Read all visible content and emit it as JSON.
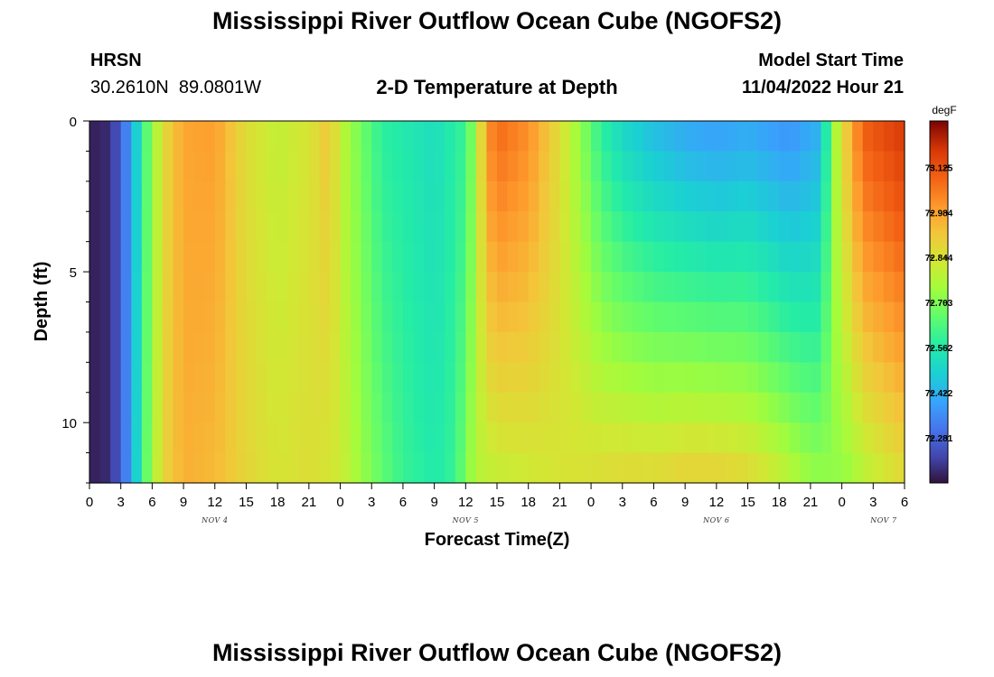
{
  "header": {
    "title": "Mississippi River Outflow Ocean Cube (NGOFS2)",
    "station_name": "HRSN",
    "station_coords": "30.2610N  89.0801W",
    "model_start_label": "Model Start Time",
    "model_start_value": "11/04/2022 Hour 21"
  },
  "footer": {
    "title": "Mississippi River Outflow Ocean Cube (NGOFS2)"
  },
  "chart_data": {
    "type": "heatmap",
    "title": "2-D Temperature at Depth",
    "xlabel": "Forecast Time(Z)",
    "ylabel": "Depth (ft)",
    "x_tick_labels": [
      "0",
      "3",
      "6",
      "9",
      "12",
      "15",
      "18",
      "21",
      "0",
      "3",
      "6",
      "9",
      "12",
      "15",
      "18",
      "21",
      "0",
      "3",
      "6",
      "9",
      "12",
      "15",
      "18",
      "21",
      "0",
      "3",
      "6"
    ],
    "x_range_hours": [
      0,
      78
    ],
    "day_labels": [
      {
        "label": "NOV 4",
        "hour": 12
      },
      {
        "label": "NOV 5",
        "hour": 36
      },
      {
        "label": "NOV 6",
        "hour": 60
      },
      {
        "label": "NOV 7",
        "hour": 76
      }
    ],
    "y_range_ft": [
      0,
      12
    ],
    "y_ticks": [
      0,
      5,
      10
    ],
    "y_inverted": true,
    "colorbar": {
      "unit": "degF",
      "range": [
        72.14,
        73.27
      ],
      "tick_values": [
        73.125,
        72.984,
        72.844,
        72.703,
        72.562,
        72.422,
        72.281
      ],
      "tick_labels": [
        "73.125",
        "72.984",
        "72.844",
        "72.703",
        "72.562",
        "72.422",
        "72.281"
      ]
    },
    "temperature_field": {
      "description_units": "degF",
      "time_step_hours": 1,
      "depth_levels_ft": [
        0.5,
        1.5,
        2.5,
        3.5,
        4.5,
        5.5,
        6.5,
        7.5,
        8.5,
        9.5,
        10.5,
        11.5
      ],
      "surface_anchors": [
        [
          0,
          72.16
        ],
        [
          2,
          72.18
        ],
        [
          4,
          72.38
        ],
        [
          5,
          72.58
        ],
        [
          6,
          72.72
        ],
        [
          7,
          72.86
        ],
        [
          9,
          72.98
        ],
        [
          12,
          72.99
        ],
        [
          15,
          72.86
        ],
        [
          18,
          72.8
        ],
        [
          21,
          72.84
        ],
        [
          23,
          72.92
        ],
        [
          24,
          72.8
        ],
        [
          26,
          72.68
        ],
        [
          28,
          72.58
        ],
        [
          30,
          72.56
        ],
        [
          33,
          72.52
        ],
        [
          36,
          72.6
        ],
        [
          37,
          72.76
        ],
        [
          38,
          73.0
        ],
        [
          39,
          73.08
        ],
        [
          42,
          73.02
        ],
        [
          45,
          72.86
        ],
        [
          47,
          72.72
        ],
        [
          49,
          72.58
        ],
        [
          51,
          72.5
        ],
        [
          54,
          72.44
        ],
        [
          57,
          72.4
        ],
        [
          60,
          72.38
        ],
        [
          63,
          72.4
        ],
        [
          67,
          72.36
        ],
        [
          70,
          72.42
        ],
        [
          71,
          72.7
        ],
        [
          72,
          72.86
        ],
        [
          74,
          73.1
        ],
        [
          78,
          73.18
        ]
      ],
      "bottom_anchors": [
        [
          0,
          72.16
        ],
        [
          2,
          72.18
        ],
        [
          4,
          72.38
        ],
        [
          5,
          72.6
        ],
        [
          6,
          72.74
        ],
        [
          7,
          72.88
        ],
        [
          9,
          72.96
        ],
        [
          12,
          72.94
        ],
        [
          15,
          72.88
        ],
        [
          18,
          72.84
        ],
        [
          21,
          72.86
        ],
        [
          24,
          72.82
        ],
        [
          26,
          72.74
        ],
        [
          28,
          72.66
        ],
        [
          30,
          72.6
        ],
        [
          33,
          72.56
        ],
        [
          35,
          72.6
        ],
        [
          36,
          72.7
        ],
        [
          37,
          72.78
        ],
        [
          39,
          72.8
        ],
        [
          42,
          72.82
        ],
        [
          45,
          72.84
        ],
        [
          48,
          72.86
        ],
        [
          51,
          72.88
        ],
        [
          54,
          72.88
        ],
        [
          57,
          72.9
        ],
        [
          60,
          72.9
        ],
        [
          63,
          72.88
        ],
        [
          66,
          72.82
        ],
        [
          69,
          72.74
        ],
        [
          72,
          72.72
        ],
        [
          75,
          72.8
        ],
        [
          78,
          72.86
        ]
      ]
    }
  }
}
